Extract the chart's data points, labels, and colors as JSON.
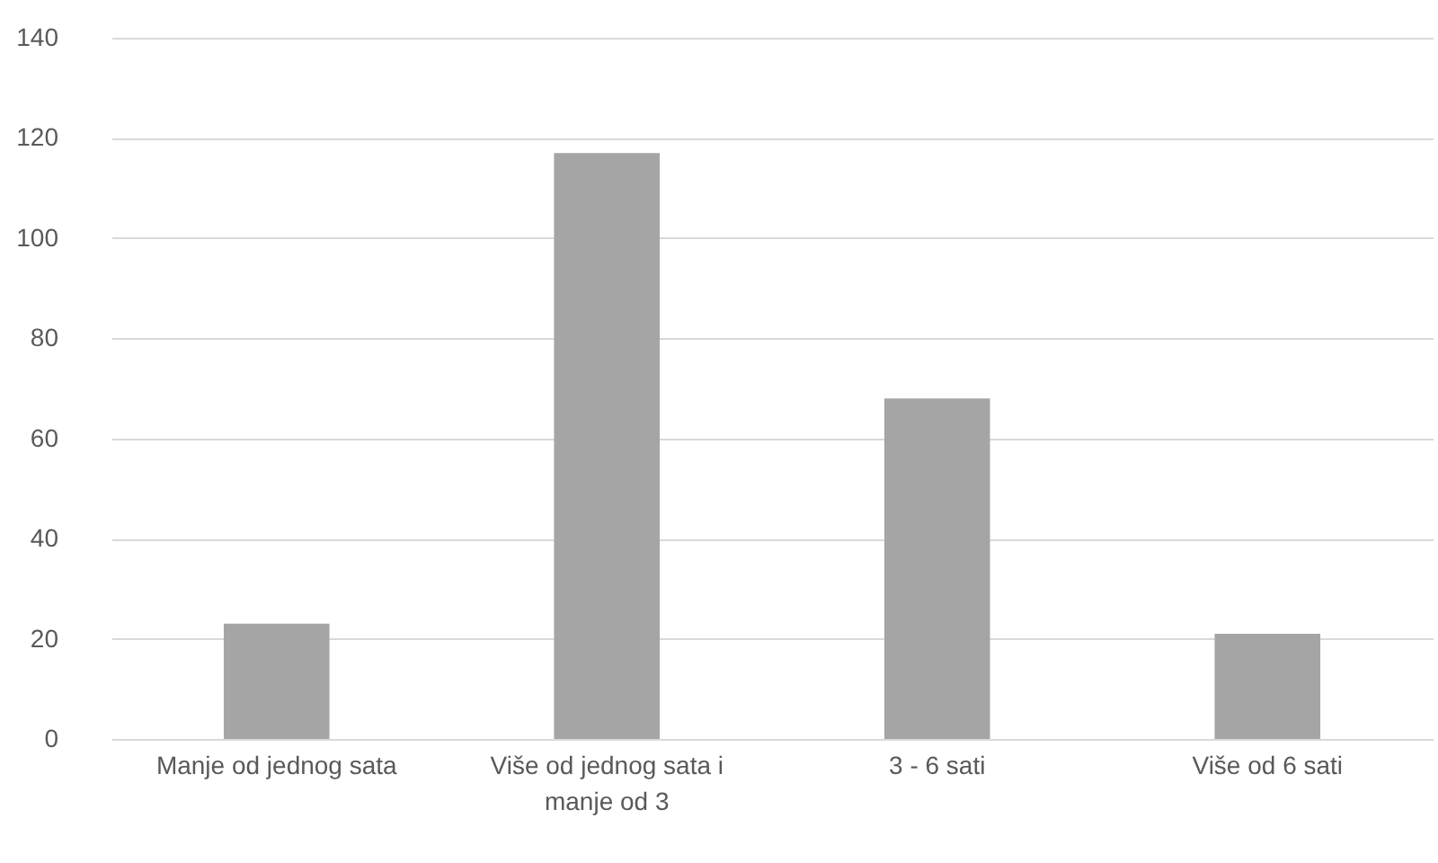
{
  "chart_data": {
    "type": "bar",
    "categories": [
      "Manje od jednog sata",
      "Više od jednog sata i manje od 3",
      "3 - 6 sati",
      "Više od 6 sati"
    ],
    "values": [
      23,
      117,
      68,
      21
    ],
    "color": "#a5a5a5",
    "ylim": [
      0,
      140
    ],
    "yticks": [
      0,
      20,
      40,
      60,
      80,
      100,
      120,
      140
    ],
    "grid": "y"
  }
}
